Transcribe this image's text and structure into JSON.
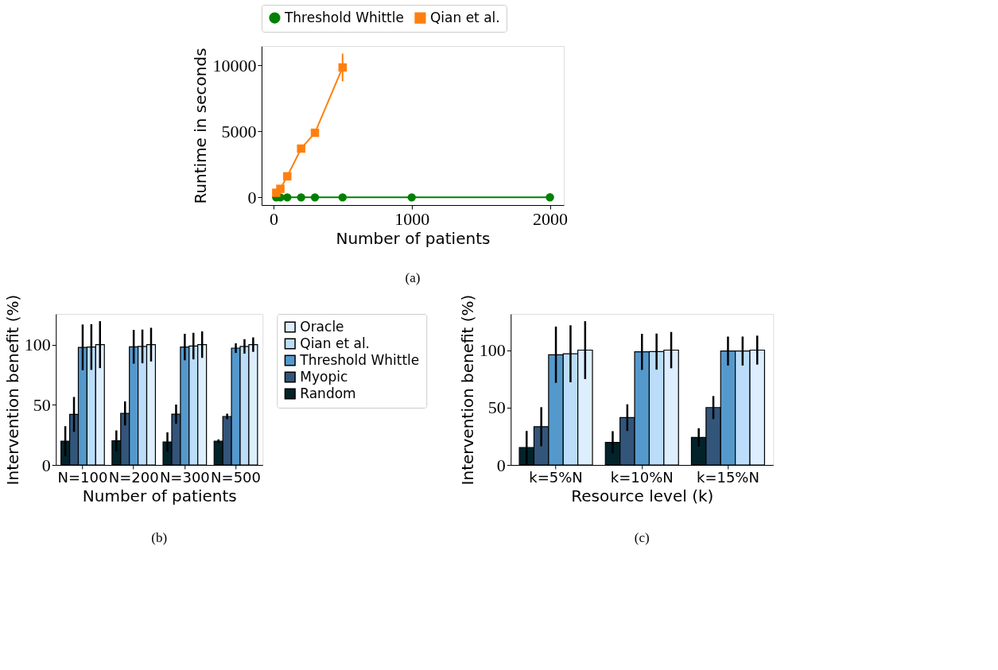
{
  "chart_data": [
    {
      "type": "line",
      "xlabel": "Number of patients",
      "ylabel": "Runtime in seconds",
      "annotations": [
        "(a)"
      ],
      "legend": "top",
      "xlim": [
        -86,
        2100
      ],
      "ylim": [
        -580,
        11470
      ],
      "xticks": [
        0,
        1000,
        2000
      ],
      "yticks": [
        0,
        5000,
        10000
      ],
      "series": [
        {
          "name": "Threshold Whittle",
          "color": "#008000",
          "marker": "circle",
          "x": [
            20,
            50,
            100,
            200,
            300,
            500,
            1000,
            2000
          ],
          "values": [
            0,
            0,
            0,
            0,
            0,
            0,
            0,
            10
          ]
        },
        {
          "name": "Qian et al.",
          "color": "#ff7f0e",
          "marker": "square",
          "x": [
            20,
            50,
            100,
            200,
            300,
            500
          ],
          "values": [
            350,
            650,
            1600,
            3700,
            4900,
            9850
          ],
          "errors": [
            100,
            150,
            150,
            200,
            250,
            1050
          ]
        }
      ]
    },
    {
      "type": "bar",
      "xlabel": "Number of patients",
      "ylabel": "Intervention benefit (%)",
      "annotations": [
        "(b)"
      ],
      "legend": "right",
      "categories": [
        "N=100",
        "N=200",
        "N=300",
        "N=500"
      ],
      "ylim": [
        0,
        125.5
      ],
      "yticks": [
        0,
        50,
        100
      ],
      "series": [
        {
          "name": "Random",
          "color": "#02232a",
          "values": [
            19.7,
            20,
            19.1,
            19.7
          ],
          "errors": [
            12.5,
            8.7,
            8,
            1.5
          ]
        },
        {
          "name": "Myopic",
          "color": "#33557a",
          "values": [
            42,
            42.8,
            42.2,
            40.3
          ],
          "errors": [
            14.5,
            10,
            8,
            2.3
          ]
        },
        {
          "name": "Threshold Whittle",
          "color": "#5599cc",
          "values": [
            97.7,
            98.2,
            98,
            97.1
          ],
          "errors": [
            19,
            14,
            11,
            4
          ]
        },
        {
          "name": "Qian et al.",
          "color": "#bbddfa",
          "values": [
            98,
            98.5,
            98.8,
            98.5
          ],
          "errors": [
            19,
            14,
            11,
            6
          ]
        },
        {
          "name": "Oracle",
          "color": "#ddeeff",
          "values": [
            100,
            100,
            100,
            100
          ],
          "errors": [
            19.5,
            14,
            11,
            6
          ]
        }
      ]
    },
    {
      "type": "bar",
      "xlabel": "Resource level (k)",
      "ylabel": "Intervention benefit (%)",
      "annotations": [
        "(c)"
      ],
      "categories": [
        "k=5%N",
        "k=10%N",
        "k=15%N"
      ],
      "ylim": [
        0,
        131.5
      ],
      "yticks": [
        0,
        50,
        100
      ],
      "series": [
        {
          "color": "#02232a",
          "values": [
            15.1,
            19.7,
            24
          ],
          "errors": [
            14.5,
            9.7,
            8
          ]
        },
        {
          "color": "#33557a",
          "values": [
            33.3,
            41.2,
            50
          ],
          "errors": [
            17,
            11.6,
            10
          ]
        },
        {
          "color": "#5599cc",
          "values": [
            96,
            98.5,
            99.2
          ],
          "errors": [
            24.5,
            15.7,
            12.6
          ]
        },
        {
          "color": "#bbddfa",
          "values": [
            96.8,
            98.7,
            99.2
          ],
          "errors": [
            24.8,
            15.7,
            12.6
          ]
        },
        {
          "color": "#ddeeff",
          "values": [
            100,
            100,
            100
          ],
          "errors": [
            25.2,
            15.8,
            12.6
          ]
        }
      ]
    }
  ]
}
